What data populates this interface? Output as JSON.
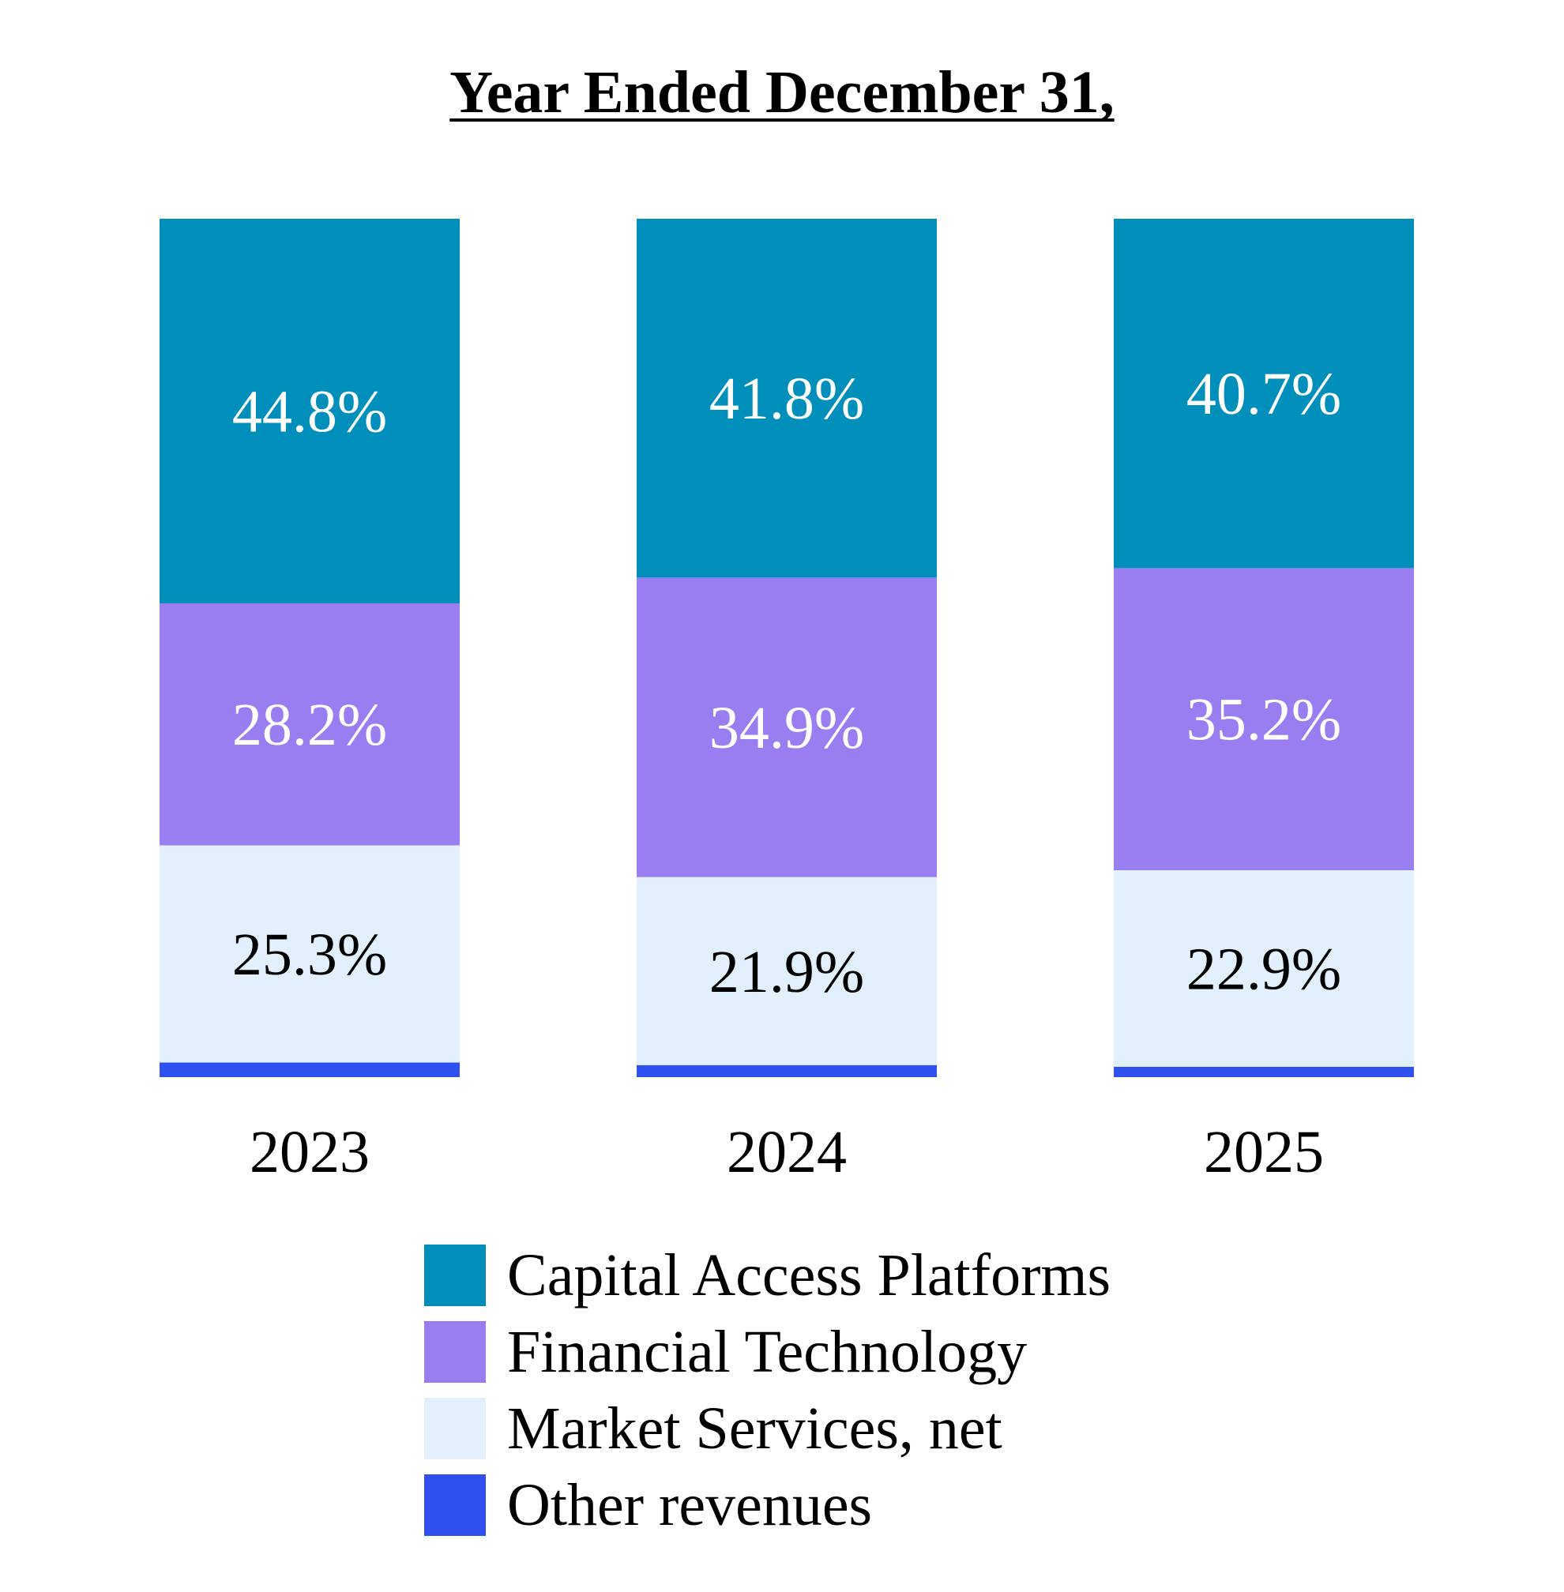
{
  "chart_data": {
    "type": "bar",
    "stacked": true,
    "title": "Year Ended December 31,",
    "categories": [
      "2023",
      "2024",
      "2025"
    ],
    "series": [
      {
        "name": "Capital Access Platforms",
        "color": "#008fbb",
        "label_color": "#ffffff",
        "values": [
          44.8,
          41.8,
          40.7
        ],
        "labels": [
          "44.8%",
          "41.8%",
          "40.7%"
        ]
      },
      {
        "name": "Financial Technology",
        "color": "#9a7ef1",
        "label_color": "#ffffff",
        "values": [
          28.2,
          34.9,
          35.2
        ],
        "labels": [
          "28.2%",
          "34.9%",
          "35.2%"
        ]
      },
      {
        "name": "Market Services, net",
        "color": "#e2f0fd",
        "label_color": "#000000",
        "values": [
          25.3,
          21.9,
          22.9
        ],
        "labels": [
          "25.3%",
          "21.9%",
          "22.9%"
        ]
      },
      {
        "name": "Other revenues",
        "color": "#2f50ee",
        "label_color": "#ffffff",
        "values": [
          1.7,
          1.4,
          1.2
        ],
        "labels": [
          "",
          "",
          ""
        ]
      }
    ],
    "value_unit": "%",
    "legend_position": "bottom-center",
    "grid": false,
    "axes_visible": false
  }
}
